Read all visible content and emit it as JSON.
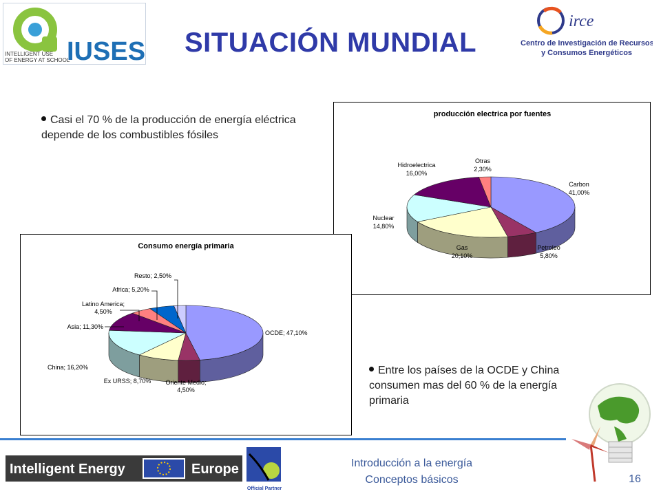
{
  "header": {
    "title": "SITUACIÓN MUNDIAL",
    "iuses_logo": {
      "tagline_line1": "INTELLIGENT USE",
      "tagline_line2": "OF ENERGY AT SCHOOL",
      "brand": "IUSES"
    },
    "circe_logo": {
      "brand": "irce",
      "line1": "Centro de Investigación de Recursos",
      "line2": "y Consumos Energéticos"
    }
  },
  "bullets": {
    "first": "Casi el 70 % de la producción de energía eléctrica depende de los combustibles fósiles",
    "second": "Entre los países de la OCDE y China consumen mas del 60 % de la energía primaria"
  },
  "colors": {
    "title": "#2f3aa8",
    "accent_line": "#3a7fd0",
    "footer_text": "#3b5a9a"
  },
  "chart_data": [
    {
      "type": "pie",
      "title": "producción electrica por fuentes",
      "slices": [
        {
          "label": "Carbon",
          "value_text": "41,00%",
          "value": 41.0,
          "color": "#9999ff"
        },
        {
          "label": "Petroleo",
          "value_text": "5,80%",
          "value": 5.8,
          "color": "#993366"
        },
        {
          "label": "Gas",
          "value_text": "20,10%",
          "value": 20.1,
          "color": "#ffffcc"
        },
        {
          "label": "Nuclear",
          "value_text": "14,80%",
          "value": 14.8,
          "color": "#ccffff"
        },
        {
          "label": "Hidroelectrica",
          "value_text": "16,00%",
          "value": 16.0,
          "color": "#660066"
        },
        {
          "label": "Otras",
          "value_text": "2,30%",
          "value": 2.3,
          "color": "#ff8080"
        }
      ]
    },
    {
      "type": "pie",
      "title": "Consumo energía primaria",
      "slices": [
        {
          "label": "OCDE; 47,10%",
          "value": 47.1,
          "color": "#9999ff"
        },
        {
          "label": "Oriente Medio; 4,50%",
          "value": 4.5,
          "color": "#993366"
        },
        {
          "label": "Ex URSS; 8,70%",
          "value": 8.7,
          "color": "#ffffcc"
        },
        {
          "label": "China; 16,20%",
          "value": 16.2,
          "color": "#ccffff"
        },
        {
          "label": "Asia; 11,30%",
          "value": 11.3,
          "color": "#660066"
        },
        {
          "label": "Latino America; 4,50%",
          "value": 4.5,
          "color": "#ff8080"
        },
        {
          "label": "Africa; 5,20%",
          "value": 5.2,
          "color": "#0066cc"
        },
        {
          "label": "Resto; 2,50%",
          "value": 2.5,
          "color": "#ccccff"
        }
      ]
    }
  ],
  "footer": {
    "program": "Intelligent Energy",
    "program_region": "Europe",
    "partner": "Official Partner",
    "line1": "Introducción a la energía",
    "line2": "Conceptos básicos",
    "page_number": "16"
  }
}
